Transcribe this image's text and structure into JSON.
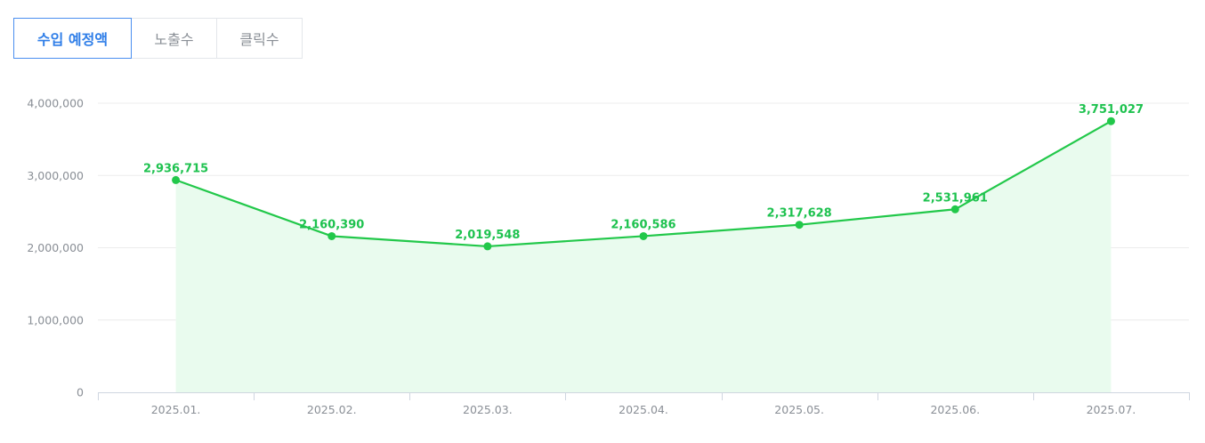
{
  "tabs": [
    {
      "label": "수입 예정액",
      "active": true
    },
    {
      "label": "노출수",
      "active": false
    },
    {
      "label": "클릭수",
      "active": false
    }
  ],
  "colors": {
    "line": "#22c84a",
    "fill": "#e9fbee",
    "active_tab": "#2f7ee8",
    "grid": "#ececec",
    "axis_text": "#8a8f96"
  },
  "chart_data": {
    "type": "area",
    "categories": [
      "2025.01.",
      "2025.02.",
      "2025.03.",
      "2025.04.",
      "2025.05.",
      "2025.06.",
      "2025.07."
    ],
    "series": [
      {
        "values": [
          2936715,
          2160390,
          2019548,
          2160586,
          2317628,
          2531961,
          3751027
        ],
        "labels": [
          "2,936,715",
          "2,160,390",
          "2,019,548",
          "2,160,586",
          "2,317,628",
          "2,531,961",
          "3,751,027"
        ]
      }
    ],
    "yticks": [
      0,
      1000000,
      2000000,
      3000000,
      4000000
    ],
    "ytick_labels": [
      "0",
      "1,000,000",
      "2,000,000",
      "3,000,000",
      "4,000,000"
    ],
    "ylim": [
      0,
      4000000
    ],
    "grid": true,
    "markers": true
  }
}
